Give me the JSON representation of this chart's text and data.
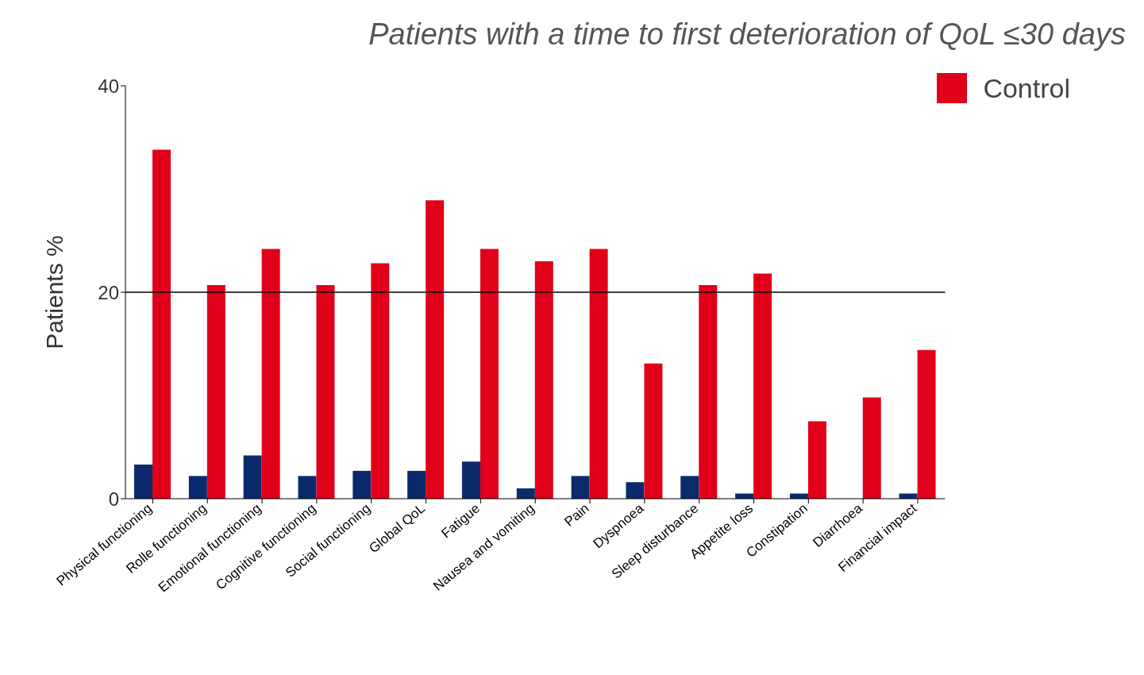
{
  "chart_data": {
    "type": "bar",
    "title": "Patients with a time to first deterioration of QoL ≤30 days",
    "ylabel": "Patients %",
    "categories": [
      "Physical functioning",
      "Rolle functioning",
      "Emotional  functioning",
      "Cognitive  functioning",
      "Social functioning",
      "Global QoL",
      "Fatigue",
      "Nausea and vomiting",
      "Pain",
      "Dyspnoea",
      "Sleep disturbance",
      "Appetite loss",
      "Constipation",
      "Diarrhoea",
      "Financial impact"
    ],
    "series": [
      {
        "color": "#0a2a6b",
        "values": [
          3.3,
          2.2,
          4.2,
          2.2,
          2.7,
          2.7,
          3.6,
          1.0,
          2.2,
          1.6,
          2.2,
          0.5,
          0.5,
          0,
          0.5
        ]
      },
      {
        "name": "Control",
        "color": "#e0001a",
        "values": [
          33.8,
          20.7,
          24.2,
          20.7,
          22.8,
          28.9,
          24.2,
          23.0,
          24.2,
          13.1,
          20.7,
          21.8,
          7.5,
          9.8,
          14.4
        ]
      }
    ],
    "ylim": [
      0,
      40
    ],
    "yticks": [
      0,
      20,
      40
    ],
    "grid": false,
    "legend": "top right",
    "ref_lines": [
      {
        "axis": "y",
        "value": 20,
        "color": "#000000"
      }
    ]
  }
}
